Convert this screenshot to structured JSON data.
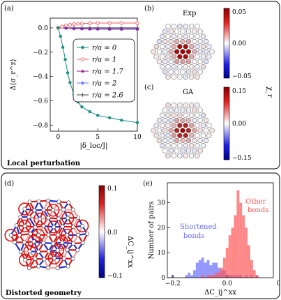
{
  "panel_a": {
    "tag": "(a)",
    "footer": "Local perturbation",
    "chart_data": {
      "type": "line",
      "xlabel": "|δ_loc/J|",
      "ylabel": "Δ⟨σ_r^z⟩",
      "xlim": [
        -1,
        10
      ],
      "ylim": [
        -0.85,
        0.08
      ],
      "xticks": [
        0,
        5,
        10
      ],
      "yticks": [
        0.0,
        -0.2,
        -0.4,
        -0.6,
        -0.8
      ],
      "legend_position": "right",
      "series": [
        {
          "name": "r/a = 0",
          "color": "#1a8f80",
          "marker": "circle",
          "x": [
            0,
            0.3,
            0.6,
            0.9,
            1.2,
            1.5,
            2.0,
            2.5,
            3.0,
            4.0,
            5.0,
            6.5,
            8.0,
            10.0
          ],
          "y": [
            0.0,
            -0.07,
            -0.16,
            -0.26,
            -0.37,
            -0.45,
            -0.55,
            -0.61,
            -0.65,
            -0.69,
            -0.72,
            -0.74,
            -0.76,
            -0.78
          ]
        },
        {
          "name": "r/a = 1",
          "color": "#ff5a5a",
          "marker": "circle-open",
          "x": [
            0,
            0.5,
            1.0,
            1.5,
            2.0,
            2.5,
            3.0,
            4.0,
            5.0,
            6.5,
            8.0,
            10.0
          ],
          "y": [
            0.0,
            0.01,
            0.02,
            0.025,
            0.03,
            0.035,
            0.035,
            0.038,
            0.04,
            0.04,
            0.04,
            0.04
          ]
        },
        {
          "name": "r/a = 1.7",
          "color": "#8b1a8b",
          "marker": "triangle",
          "x": [
            0,
            1.0,
            2.0,
            3.0,
            4.0,
            5.0,
            6.5,
            8.0,
            10.0
          ],
          "y": [
            0.0,
            0.0,
            -0.005,
            -0.005,
            -0.008,
            -0.008,
            -0.008,
            -0.008,
            -0.008
          ]
        },
        {
          "name": "r/a = 2",
          "color": "#6a6aff",
          "marker": "star",
          "x": [
            0,
            1.0,
            2.0,
            3.0,
            4.0,
            5.0,
            6.5,
            8.0,
            10.0
          ],
          "y": [
            0.0,
            -0.003,
            -0.006,
            -0.008,
            -0.01,
            -0.01,
            -0.012,
            -0.012,
            -0.012
          ]
        },
        {
          "name": "r/a = 2.6",
          "color": "#444444",
          "marker": "plus",
          "x": [
            0,
            1.0,
            2.0,
            3.0,
            4.0,
            5.0,
            6.5,
            8.0,
            10.0
          ],
          "y": [
            0.0,
            0.0,
            0.0,
            0.0,
            0.0,
            0.0,
            0.0,
            0.0,
            0.0
          ]
        }
      ]
    }
  },
  "panel_b": {
    "tag": "(b)",
    "title": "Exp",
    "cbar_ticks": [
      "0.05",
      "0.00",
      "−0.05"
    ],
    "cbar_label": "χ_r"
  },
  "panel_c": {
    "tag": "(c)",
    "title": "GA",
    "cbar_ticks": [
      "0.15",
      "0.00",
      "−0.15"
    ]
  },
  "panel_d": {
    "tag": "(d)",
    "footer": "Distorted geometry",
    "cbar_ticks": [
      "0.1",
      "0.0",
      "−0.1"
    ],
    "cbar_label": "ΔC_ij^xx"
  },
  "panel_e": {
    "tag": "(e)",
    "chart_data": {
      "type": "bar",
      "xlabel": "ΔC_ij^xx",
      "ylabel": "Number of pairs",
      "xlim": [
        -0.22,
        0.17
      ],
      "ylim": [
        0,
        38
      ],
      "xticks": [
        -0.2,
        0.0,
        0.2
      ],
      "yticks": [
        0,
        10,
        20,
        30
      ],
      "bin_width": 0.01,
      "annotations": [
        {
          "text": "Other bonds",
          "color": "#ff5555"
        },
        {
          "text": "Shortened bonds",
          "color": "#6a6aff"
        }
      ],
      "series": [
        {
          "name": "Shortened bonds",
          "color": "#6a6aff",
          "bins": [
            -0.2,
            -0.19,
            -0.18,
            -0.17,
            -0.16,
            -0.15,
            -0.14,
            -0.13,
            -0.12,
            -0.11,
            -0.1,
            -0.09,
            -0.08,
            -0.07,
            -0.06,
            -0.05,
            -0.04,
            -0.03,
            -0.02,
            -0.01,
            0.0,
            0.01,
            0.02,
            0.03,
            0.04,
            0.05,
            0.06,
            0.07,
            0.08,
            0.09,
            0.1,
            0.11,
            0.12
          ],
          "values": [
            1,
            0,
            0,
            0,
            0,
            1,
            2,
            1,
            3,
            6,
            7,
            8,
            6,
            7,
            5,
            6,
            6,
            4,
            3,
            3,
            1,
            1,
            1,
            1,
            1,
            1,
            0,
            1,
            0,
            1,
            0,
            1,
            0
          ]
        },
        {
          "name": "Other bonds",
          "color": "#ff5555",
          "bins": [
            -0.12,
            -0.11,
            -0.1,
            -0.09,
            -0.08,
            -0.07,
            -0.06,
            -0.05,
            -0.04,
            -0.03,
            -0.02,
            -0.01,
            0.0,
            0.01,
            0.02,
            0.03,
            0.04,
            0.05,
            0.06,
            0.07,
            0.08,
            0.09,
            0.1,
            0.11
          ],
          "values": [
            0,
            0,
            0,
            1,
            0,
            1,
            1,
            1,
            2,
            2,
            4,
            8,
            12,
            17,
            20,
            25,
            35,
            30,
            25,
            20,
            13,
            7,
            3,
            1
          ]
        }
      ]
    }
  }
}
